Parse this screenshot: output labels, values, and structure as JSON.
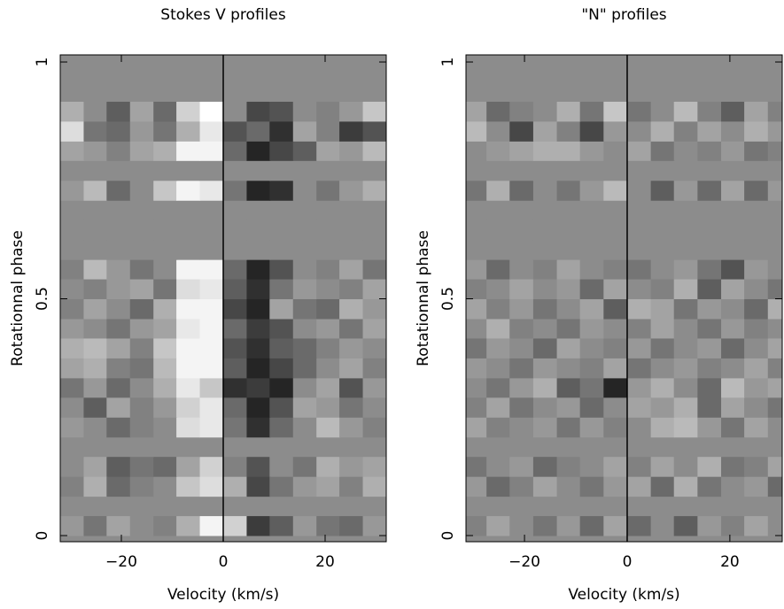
{
  "chart_data": [
    {
      "type": "heatmap",
      "title": "Stokes V profiles",
      "xlabel": "Velocity (km/s)",
      "ylabel": "Rotationnal phase",
      "xlim": [
        -32,
        32
      ],
      "ylim": [
        -0.013,
        1.015
      ],
      "clim": [
        -1,
        1
      ],
      "colormap": "gray",
      "xticks": [
        {
          "value": -20,
          "label": "−20"
        },
        0,
        20
      ],
      "yticks": [
        0,
        0.5,
        1
      ],
      "x": [
        -29.7,
        -25.1,
        -20.6,
        -16,
        -11.4,
        -6.9,
        -2.3,
        2.3,
        6.9,
        11.4,
        16,
        20.6,
        25.1,
        29.7
      ],
      "y": [
        0.021,
        0.063,
        0.104,
        0.146,
        0.188,
        0.229,
        0.271,
        0.313,
        0.354,
        0.396,
        0.438,
        0.479,
        0.521,
        0.563,
        0.604,
        0.646,
        0.688,
        0.729,
        0.771,
        0.813,
        0.854,
        0.896,
        0.938,
        0.979
      ],
      "values": [
        [
          0.1,
          -0.2,
          0.2,
          0,
          -0.1,
          0.3,
          0.9,
          0.6,
          -0.7,
          -0.4,
          0.1,
          -0.2,
          -0.3,
          0.1
        ],
        [
          0,
          0,
          0,
          0,
          0,
          0,
          0,
          0,
          0,
          0,
          0,
          0,
          0,
          0
        ],
        [
          -0.1,
          0.3,
          -0.3,
          -0.1,
          0,
          0.5,
          0.7,
          0.3,
          -0.6,
          -0.2,
          0.1,
          0.2,
          -0.1,
          0.3
        ],
        [
          0,
          0.2,
          -0.4,
          -0.2,
          -0.3,
          0.2,
          0.6,
          -0.1,
          -0.5,
          0,
          -0.2,
          0.3,
          0.1,
          0.2
        ],
        [
          0,
          0,
          0,
          0,
          0,
          0,
          0,
          0,
          0,
          0,
          0,
          0,
          0,
          0
        ],
        [
          0.1,
          0,
          -0.3,
          -0.1,
          0,
          0.7,
          0.8,
          -0.2,
          -0.8,
          -0.3,
          0,
          0.4,
          0.1,
          -0.1
        ],
        [
          0,
          -0.4,
          0.2,
          -0.1,
          0.1,
          0.6,
          0.8,
          -0.3,
          -0.9,
          -0.5,
          0.2,
          0.1,
          -0.2,
          0
        ],
        [
          -0.2,
          0.1,
          -0.3,
          0,
          0.3,
          0.8,
          0.5,
          -0.8,
          -0.7,
          -0.9,
          0,
          0.2,
          -0.5,
          0.1
        ],
        [
          0.2,
          0.3,
          -0.1,
          -0.2,
          0.4,
          0.9,
          0.9,
          -0.4,
          -0.9,
          -0.6,
          -0.3,
          0,
          0.2,
          -0.1
        ],
        [
          0.3,
          0.4,
          0.2,
          -0.1,
          0.5,
          0.9,
          0.9,
          -0.5,
          -0.8,
          -0.4,
          -0.3,
          -0.1,
          0.1,
          0
        ],
        [
          0.1,
          0,
          -0.2,
          0.1,
          0.2,
          0.8,
          0.9,
          -0.3,
          -0.7,
          -0.5,
          0,
          0.1,
          -0.2,
          0.2
        ],
        [
          -0.1,
          0.2,
          0,
          -0.3,
          0.3,
          0.9,
          0.9,
          -0.6,
          -0.9,
          0.2,
          -0.2,
          -0.3,
          0.3,
          0.1
        ],
        [
          0,
          -0.1,
          0.1,
          0.2,
          -0.2,
          0.7,
          0.8,
          -0.4,
          -0.8,
          -0.2,
          0.1,
          0,
          -0.1,
          0.2
        ],
        [
          -0.1,
          0.4,
          0.1,
          -0.2,
          0,
          0.9,
          0.9,
          -0.3,
          -0.9,
          -0.5,
          0,
          -0.1,
          0.2,
          -0.2
        ],
        [
          0,
          0,
          0,
          0,
          0,
          0,
          0,
          0,
          0,
          0,
          0,
          0,
          0,
          0
        ],
        [
          0,
          0,
          0,
          0,
          0,
          0,
          0,
          0,
          0,
          0,
          0,
          0,
          0,
          0
        ],
        [
          0,
          0,
          0,
          0,
          0,
          0,
          0,
          0,
          0,
          0,
          0,
          0,
          0,
          0
        ],
        [
          0.1,
          0.4,
          -0.3,
          0,
          0.5,
          0.9,
          0.8,
          -0.2,
          -0.9,
          -0.8,
          0,
          -0.2,
          0.1,
          0.3
        ],
        [
          0,
          0,
          0,
          0,
          0,
          0,
          0,
          0,
          0,
          0,
          0,
          0,
          0,
          0
        ],
        [
          0.2,
          0.1,
          -0.1,
          0.2,
          0.3,
          0.9,
          0.9,
          -0.3,
          -0.9,
          -0.6,
          -0.4,
          0.2,
          0.1,
          0.4
        ],
        [
          0.7,
          -0.2,
          -0.3,
          0.1,
          -0.2,
          0.3,
          0.8,
          -0.5,
          -0.3,
          -0.8,
          0.2,
          -0.1,
          -0.7,
          -0.5
        ],
        [
          0.3,
          0,
          -0.4,
          0.2,
          -0.3,
          0.6,
          1,
          0,
          -0.6,
          -0.5,
          0,
          -0.1,
          0.1,
          0.5
        ],
        [
          0,
          0,
          0,
          0,
          0,
          0,
          0,
          0,
          0,
          0,
          0,
          0,
          0,
          0
        ],
        [
          0,
          0,
          0,
          0,
          0,
          0,
          0,
          0,
          0,
          0,
          0,
          0,
          0,
          0
        ]
      ]
    },
    {
      "type": "heatmap",
      "title": "\"N\" profiles",
      "xlabel": "Velocity (km/s)",
      "ylabel": "Rotationnal phase",
      "xlim": [
        -31.4,
        30.2
      ],
      "ylim": [
        -0.013,
        1.015
      ],
      "clim": [
        -1,
        1
      ],
      "colormap": "gray",
      "xticks": [
        {
          "value": -20,
          "label": "−20"
        },
        0,
        20
      ],
      "yticks": [
        0,
        0.5,
        1
      ],
      "x": [
        -29.7,
        -25.1,
        -20.6,
        -16,
        -11.4,
        -6.9,
        -2.3,
        2.3,
        6.9,
        11.4,
        16,
        20.6,
        25.1,
        29.7
      ],
      "y": [
        0.021,
        0.063,
        0.104,
        0.146,
        0.188,
        0.229,
        0.271,
        0.313,
        0.354,
        0.396,
        0.438,
        0.479,
        0.521,
        0.563,
        0.604,
        0.646,
        0.688,
        0.729,
        0.771,
        0.813,
        0.854,
        0.896,
        0.938,
        0.979
      ],
      "values": [
        [
          -0.1,
          0.2,
          0,
          -0.2,
          0.1,
          -0.3,
          0.2,
          -0.3,
          0,
          -0.4,
          0.1,
          -0.1,
          0.2,
          0
        ],
        [
          0,
          0,
          0,
          0,
          0,
          0,
          0,
          0,
          0,
          0,
          0,
          0,
          0,
          0
        ],
        [
          0.1,
          -0.3,
          -0.1,
          0.2,
          0,
          -0.2,
          0.1,
          0.2,
          -0.3,
          0.3,
          -0.2,
          0,
          0.1,
          -0.3
        ],
        [
          -0.2,
          0,
          0.1,
          -0.3,
          -0.1,
          0,
          0.2,
          -0.1,
          0.2,
          0,
          0.3,
          -0.2,
          -0.1,
          0.2
        ],
        [
          0,
          0,
          0,
          0,
          0,
          0,
          0,
          0,
          0,
          0,
          0,
          0,
          0,
          0
        ],
        [
          0.2,
          -0.1,
          0,
          0.1,
          -0.2,
          0.1,
          -0.1,
          0,
          0.3,
          0.4,
          0.1,
          -0.2,
          0.2,
          0
        ],
        [
          -0.1,
          0.2,
          -0.2,
          0,
          0.1,
          -0.3,
          0,
          0.2,
          0.1,
          0.3,
          -0.3,
          0.2,
          0,
          -0.2
        ],
        [
          0,
          -0.2,
          0.1,
          0.3,
          -0.4,
          -0.2,
          -0.9,
          0.1,
          0.3,
          0,
          -0.3,
          0.4,
          0.1,
          0.2
        ],
        [
          0.1,
          0,
          -0.2,
          0.1,
          0,
          -0.1,
          0.2,
          -0.2,
          0,
          0.1,
          -0.1,
          0,
          0.2,
          -0.1
        ],
        [
          -0.2,
          0.1,
          0,
          -0.3,
          0.2,
          0,
          -0.1,
          0.1,
          -0.2,
          0,
          0.1,
          -0.3,
          0,
          0.2
        ],
        [
          0,
          0.3,
          -0.1,
          0,
          -0.2,
          0.1,
          0,
          -0.1,
          0.2,
          0,
          -0.2,
          0.1,
          -0.1,
          0
        ],
        [
          0.2,
          -0.1,
          0.1,
          -0.2,
          0,
          0.2,
          -0.4,
          0.3,
          0.2,
          -0.2,
          0.1,
          0,
          -0.3,
          0.3
        ],
        [
          -0.1,
          0,
          0.2,
          0,
          0.1,
          -0.3,
          0.2,
          0,
          -0.1,
          0.3,
          -0.4,
          0.2,
          0,
          -0.2
        ],
        [
          0.1,
          -0.3,
          0,
          -0.1,
          0.2,
          0,
          -0.1,
          -0.2,
          0,
          0.1,
          -0.2,
          -0.5,
          0.1,
          0
        ],
        [
          0,
          0,
          0,
          0,
          0,
          0,
          0,
          0,
          0,
          0,
          0,
          0,
          0,
          0
        ],
        [
          0,
          0,
          0,
          0,
          0,
          0,
          0,
          0,
          0,
          0,
          0,
          0,
          0,
          0
        ],
        [
          0,
          0,
          0,
          0,
          0,
          0,
          0,
          0,
          0,
          0,
          0,
          0,
          0,
          0
        ],
        [
          -0.2,
          0.3,
          -0.3,
          0,
          -0.2,
          0.1,
          0.4,
          0,
          -0.4,
          0.1,
          -0.3,
          0.2,
          -0.3,
          0.1
        ],
        [
          0,
          0,
          0,
          0,
          0,
          0,
          0,
          0,
          0,
          0,
          0,
          0,
          0,
          0
        ],
        [
          0,
          0.1,
          0.2,
          0.3,
          0.3,
          0.1,
          0,
          0.2,
          -0.2,
          0,
          -0.1,
          0.1,
          -0.2,
          -0.1
        ],
        [
          0.4,
          0,
          -0.6,
          0.2,
          -0.1,
          -0.6,
          0.1,
          0,
          0.3,
          -0.1,
          0.2,
          0,
          0.3,
          0.1
        ],
        [
          0.2,
          -0.3,
          -0.1,
          0,
          0.3,
          -0.2,
          0.5,
          -0.2,
          0,
          0.4,
          -0.1,
          -0.4,
          0.2,
          -0.1
        ],
        [
          0,
          0,
          0,
          0,
          0,
          0,
          0,
          0,
          0,
          0,
          0,
          0,
          0,
          0
        ],
        [
          0,
          0,
          0,
          0,
          0,
          0,
          0,
          0,
          0,
          0,
          0,
          0,
          0,
          0
        ]
      ]
    }
  ]
}
